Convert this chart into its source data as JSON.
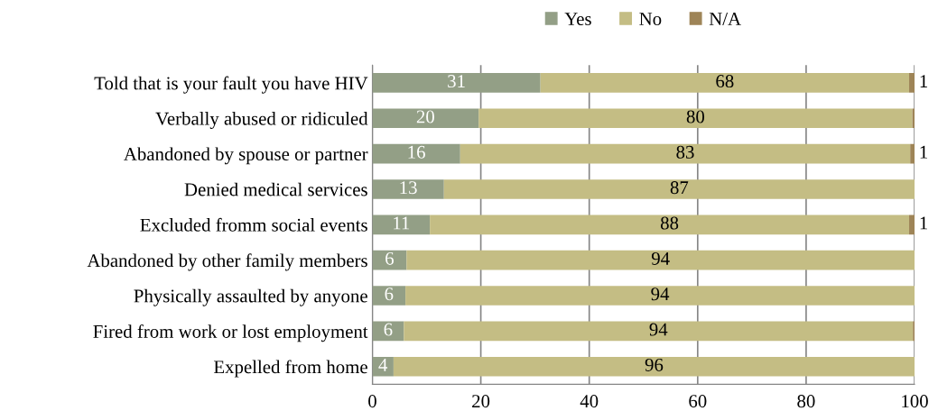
{
  "chart_data": {
    "type": "bar",
    "orientation": "horizontal",
    "stacked": true,
    "categories": [
      "Told that is your fault you have HIV",
      "Verbally abused or ridiculed",
      "Abandoned by spouse or partner",
      "Denied medical services",
      "Excluded fromm social events",
      "Abandoned by other family members",
      "Physically assaulted by anyone",
      "Fired from work or lost employment",
      "Expelled from home"
    ],
    "series": [
      {
        "name": "Yes",
        "color": "#939f86",
        "values": [
          31,
          19.6,
          16.2,
          13.2,
          10.6,
          6.3,
          6.1,
          5.8,
          3.9
        ],
        "value_labels": [
          "31",
          "20",
          "16",
          "13",
          "11",
          "6",
          "6",
          "6",
          "4"
        ]
      },
      {
        "name": "No",
        "color": "#c4bd84",
        "values": [
          68,
          80,
          83,
          86.8,
          88.4,
          93.7,
          93.9,
          93.9,
          96.1
        ],
        "value_labels": [
          "68",
          "80",
          "83",
          "87",
          "88",
          "94",
          "94",
          "94",
          "96"
        ]
      },
      {
        "name": "N/A",
        "color": "#9e8457",
        "values": [
          1,
          0.4,
          0.8,
          0,
          1,
          0,
          0,
          0.3,
          0
        ],
        "value_labels": [
          "1",
          null,
          "1",
          null,
          "1",
          null,
          null,
          null,
          null
        ]
      }
    ],
    "xlim": [
      0,
      100
    ],
    "xticks": [
      0,
      20,
      40,
      60,
      80,
      100
    ],
    "grid": "x",
    "legend": "top"
  }
}
